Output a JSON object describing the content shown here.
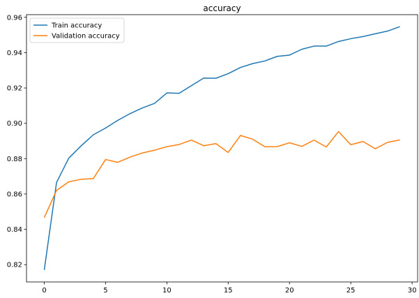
{
  "chart_data": {
    "type": "line",
    "title": "accuracy",
    "xlabel": "",
    "ylabel": "",
    "xlim": [
      -1.45,
      30.45
    ],
    "ylim": [
      0.8102,
      0.9615
    ],
    "xticks": [
      0,
      5,
      10,
      15,
      20,
      25,
      30
    ],
    "yticks": [
      0.82,
      0.84,
      0.86,
      0.88,
      0.9,
      0.92,
      0.94,
      0.96
    ],
    "ytick_labels": [
      "0.82",
      "0.84",
      "0.86",
      "0.88",
      "0.90",
      "0.92",
      "0.94",
      "0.96"
    ],
    "grid": false,
    "legend_position": "upper-left",
    "x": [
      0,
      1,
      2,
      3,
      4,
      5,
      6,
      7,
      8,
      9,
      10,
      11,
      12,
      13,
      14,
      15,
      16,
      17,
      18,
      19,
      20,
      21,
      22,
      23,
      24,
      25,
      26,
      27,
      28,
      29
    ],
    "series": [
      {
        "name": "Train accuracy",
        "color": "#1f77b4",
        "values": [
          0.817,
          0.8665,
          0.8803,
          0.8872,
          0.8935,
          0.8973,
          0.9017,
          0.9055,
          0.9087,
          0.9113,
          0.9172,
          0.917,
          0.9213,
          0.9256,
          0.9255,
          0.9281,
          0.9316,
          0.9338,
          0.9353,
          0.9379,
          0.9386,
          0.9419,
          0.9437,
          0.9437,
          0.9463,
          0.9479,
          0.9491,
          0.9507,
          0.9522,
          0.9547
        ]
      },
      {
        "name": "Validation accuracy",
        "color": "#ff7f0e",
        "values": [
          0.8466,
          0.862,
          0.8669,
          0.8683,
          0.8687,
          0.8795,
          0.8779,
          0.8809,
          0.8832,
          0.8848,
          0.8868,
          0.888,
          0.8905,
          0.8873,
          0.8885,
          0.8835,
          0.8931,
          0.891,
          0.8867,
          0.8868,
          0.889,
          0.8869,
          0.8905,
          0.8866,
          0.8953,
          0.8879,
          0.8897,
          0.8856,
          0.8892,
          0.8906
        ]
      }
    ]
  }
}
